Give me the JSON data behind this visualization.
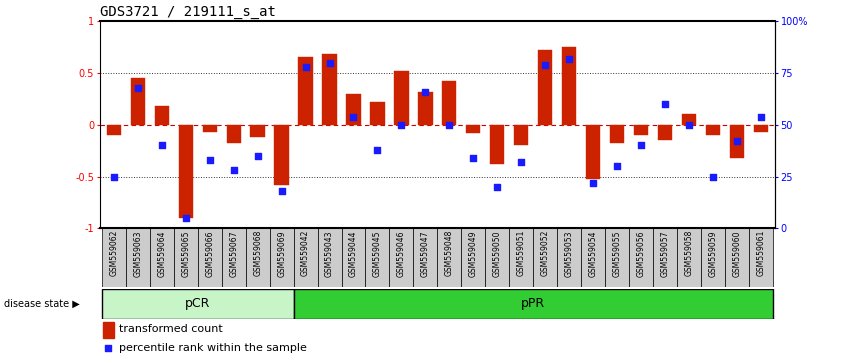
{
  "title": "GDS3721 / 219111_s_at",
  "samples": [
    "GSM559062",
    "GSM559063",
    "GSM559064",
    "GSM559065",
    "GSM559066",
    "GSM559067",
    "GSM559068",
    "GSM559069",
    "GSM559042",
    "GSM559043",
    "GSM559044",
    "GSM559045",
    "GSM559046",
    "GSM559047",
    "GSM559048",
    "GSM559049",
    "GSM559050",
    "GSM559051",
    "GSM559052",
    "GSM559053",
    "GSM559054",
    "GSM559055",
    "GSM559056",
    "GSM559057",
    "GSM559058",
    "GSM559059",
    "GSM559060",
    "GSM559061"
  ],
  "bar_values": [
    -0.1,
    0.45,
    0.18,
    -0.9,
    -0.07,
    -0.18,
    -0.12,
    -0.58,
    0.65,
    0.68,
    0.3,
    0.22,
    0.52,
    0.32,
    0.42,
    -0.08,
    -0.38,
    -0.2,
    0.72,
    0.75,
    -0.52,
    -0.18,
    -0.1,
    -0.15,
    0.1,
    -0.1,
    -0.32,
    -0.07
  ],
  "percentile_values": [
    25,
    68,
    40,
    5,
    33,
    28,
    35,
    18,
    78,
    80,
    54,
    38,
    50,
    66,
    50,
    34,
    20,
    32,
    79,
    82,
    22,
    30,
    40,
    60,
    50,
    25,
    42,
    54
  ],
  "groups": [
    {
      "label": "pCR",
      "start": 0,
      "end": 8,
      "color_light": "#c8f5c8",
      "color_dark": "#5ada5a"
    },
    {
      "label": "pPR",
      "start": 8,
      "end": 28,
      "color_light": "#5ada5a",
      "color_dark": "#32cd32"
    }
  ],
  "ylim": [
    -1.0,
    1.0
  ],
  "yticks_left": [
    -1,
    -0.5,
    0,
    0.5,
    1
  ],
  "ytick_labels_left": [
    "-1",
    "-0.5",
    "0",
    "0.5",
    "1"
  ],
  "right_yticklabels": [
    "0",
    "25",
    "50",
    "75",
    "100%"
  ],
  "bar_color": "#cc2200",
  "dot_color": "#1a1aff",
  "hline_color": "#cc0000",
  "dotted_color": "#333333",
  "bg_color": "#ffffff",
  "box_color": "#cccccc",
  "disease_state_label": "disease state",
  "legend_bar": "transformed count",
  "legend_dot": "percentile rank within the sample",
  "title_fontsize": 10,
  "tick_fontsize": 7,
  "sample_fontsize": 5.5,
  "group_fontsize": 9,
  "legend_fontsize": 8
}
